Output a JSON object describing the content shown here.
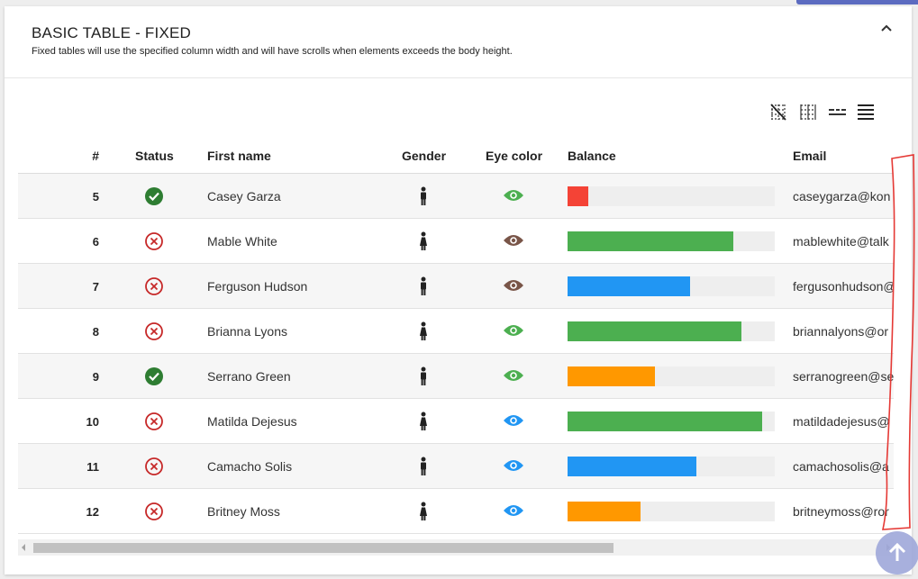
{
  "card": {
    "title": "BASIC TABLE - FIXED",
    "subtitle": "Fixed tables will use the specified column width and will have scrolls when elements exceeds the body height."
  },
  "toolbar": {
    "buttons": [
      {
        "icon": "grid-off-icon"
      },
      {
        "icon": "grid-vertical-icon"
      },
      {
        "icon": "dashed-lines-icon"
      },
      {
        "icon": "full-lines-icon"
      }
    ]
  },
  "table": {
    "headers": {
      "num": "#",
      "status": "Status",
      "first_name": "First name",
      "gender": "Gender",
      "eye_color": "Eye color",
      "balance": "Balance",
      "email": "Email"
    },
    "rows": [
      {
        "num": "5",
        "status": "active",
        "first_name": "Casey Garza",
        "gender": "male",
        "eye_color": "green",
        "balance_pct": 10,
        "balance_color": "#f44336",
        "email": "caseygarza@kon"
      },
      {
        "num": "6",
        "status": "inactive",
        "first_name": "Mable White",
        "gender": "female",
        "eye_color": "brown",
        "balance_pct": 80,
        "balance_color": "#4caf50",
        "email": "mablewhite@talk"
      },
      {
        "num": "7",
        "status": "inactive",
        "first_name": "Ferguson Hudson",
        "gender": "male",
        "eye_color": "brown",
        "balance_pct": 59,
        "balance_color": "#2196f3",
        "email": "fergusonhudson@"
      },
      {
        "num": "8",
        "status": "inactive",
        "first_name": "Brianna Lyons",
        "gender": "female",
        "eye_color": "green",
        "balance_pct": 84,
        "balance_color": "#4caf50",
        "email": "briannalyons@or"
      },
      {
        "num": "9",
        "status": "active",
        "first_name": "Serrano Green",
        "gender": "male",
        "eye_color": "green",
        "balance_pct": 42,
        "balance_color": "#ff9800",
        "email": "serranogreen@se"
      },
      {
        "num": "10",
        "status": "inactive",
        "first_name": "Matilda Dejesus",
        "gender": "female",
        "eye_color": "blue",
        "balance_pct": 94,
        "balance_color": "#4caf50",
        "email": "matildadejesus@"
      },
      {
        "num": "11",
        "status": "inactive",
        "first_name": "Camacho Solis",
        "gender": "male",
        "eye_color": "blue",
        "balance_pct": 62,
        "balance_color": "#2196f3",
        "email": "camachosolis@a"
      },
      {
        "num": "12",
        "status": "inactive",
        "first_name": "Britney Moss",
        "gender": "female",
        "eye_color": "blue",
        "balance_pct": 35,
        "balance_color": "#ff9800",
        "email": "britneymoss@ror"
      }
    ]
  },
  "colors": {
    "eye_green": "#4caf50",
    "eye_brown": "#795548",
    "eye_blue": "#2196f3",
    "status_active": "#2e7d32",
    "status_inactive": "#c62828",
    "annotation": "#e53935",
    "fab": "#9fa8da"
  }
}
